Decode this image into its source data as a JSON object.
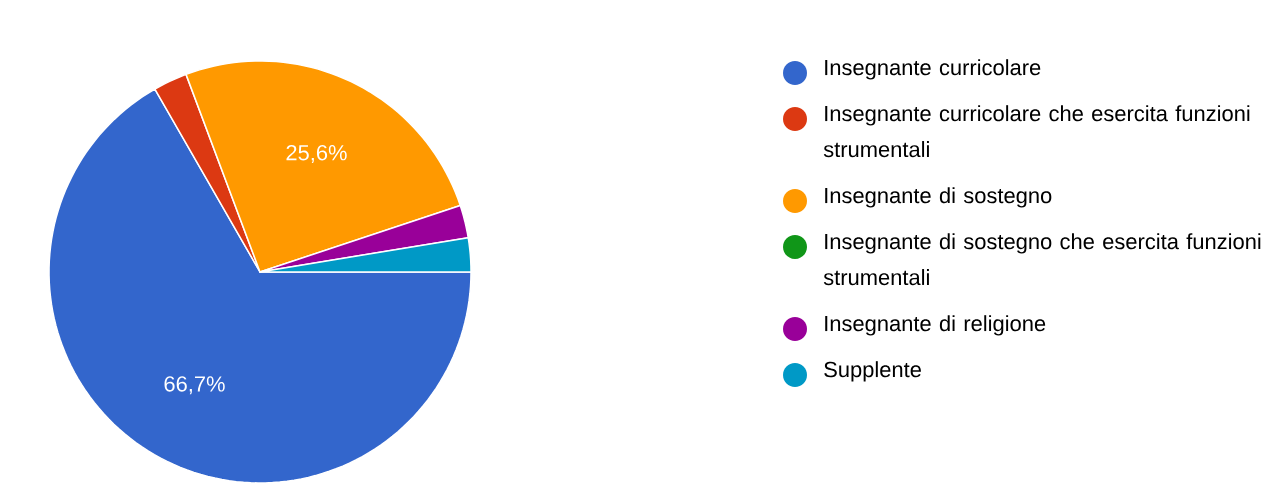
{
  "chart_data": {
    "type": "pie",
    "categories": [
      "Insegnante curricolare",
      "Insegnante curricolare che esercita funzioni strumentali",
      "Insegnante di sostegno",
      "Insegnante di sostegno che esercita funzioni strumentali",
      "Insegnante di religione",
      "Supplente"
    ],
    "values": [
      66.7,
      2.6,
      25.6,
      0,
      2.5,
      2.6
    ],
    "colors": [
      "#3366cc",
      "#dc3912",
      "#ff9900",
      "#109618",
      "#990099",
      "#0099c6"
    ],
    "value_labels": [
      "66,7%",
      null,
      "25,6%",
      null,
      null,
      null
    ],
    "legend": "right"
  }
}
